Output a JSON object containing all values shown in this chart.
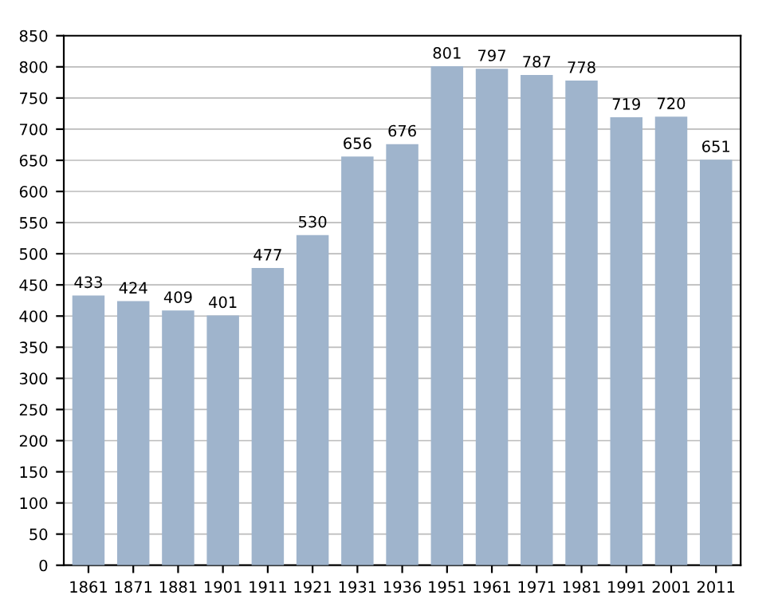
{
  "chart_data": {
    "type": "bar",
    "categories": [
      "1861",
      "1871",
      "1881",
      "1901",
      "1911",
      "1921",
      "1931",
      "1936",
      "1951",
      "1961",
      "1971",
      "1981",
      "1991",
      "2001",
      "2011"
    ],
    "values": [
      433,
      424,
      409,
      401,
      477,
      530,
      656,
      676,
      801,
      797,
      787,
      778,
      719,
      720,
      651
    ],
    "color": "#9fb4cc",
    "ylim": [
      0,
      850
    ],
    "yticks": [
      0,
      50,
      100,
      150,
      200,
      250,
      300,
      350,
      400,
      450,
      500,
      550,
      600,
      650,
      700,
      750,
      800,
      850
    ],
    "grid": "y",
    "data_labels": true
  }
}
